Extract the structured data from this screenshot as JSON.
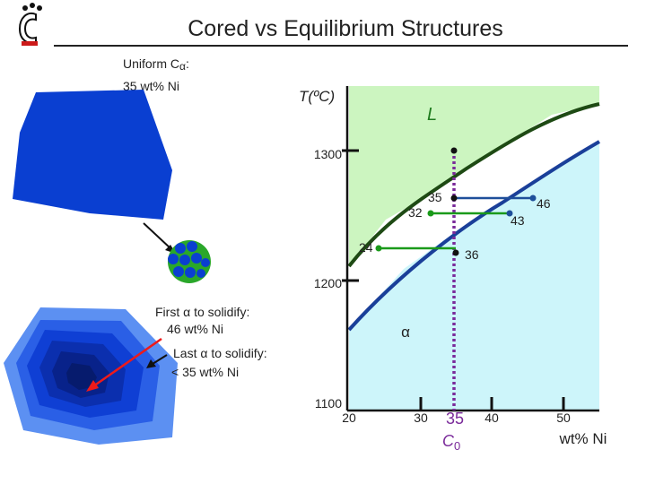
{
  "slide": {
    "title": "Cored vs Equilibrium Structures"
  },
  "left": {
    "uniform_label_line1": "Uniform C",
    "uniform_label_sub": "α",
    "uniform_label_colon": ":",
    "uniform_label_line2": "35 wt% Ni",
    "first_alpha_line1": "First α to solidify:",
    "first_alpha_line2": "46 wt% Ni",
    "last_alpha_line1": "Last α to solidify:",
    "last_alpha_line2": "< 35 wt% Ni"
  },
  "chart_data": {
    "type": "diagram",
    "ylabel": "T(ºC)",
    "xlabel": "wt% Ni",
    "xlim": [
      20,
      50
    ],
    "ylim": [
      1100,
      1350
    ],
    "y_ticks": [
      "1300",
      "1200",
      "1100"
    ],
    "x_ticks": [
      "20",
      "30",
      "35",
      "40",
      "50"
    ],
    "composition_marker": {
      "value": "35",
      "label": "C",
      "label_sub": "0"
    },
    "regions": {
      "liquid": "L",
      "solid": "α"
    },
    "tie_lines": [
      {
        "left": "35",
        "right": "46"
      },
      {
        "left": "32",
        "right": "43"
      },
      {
        "left": "24",
        "right": "36"
      }
    ],
    "colors": {
      "liquid_region": "#ccf5c0",
      "solid_region": "#cdf5fa",
      "liquidus": "#1e4a14",
      "solidus": "#1a3f99",
      "composition_line": "#7a2a9a",
      "tie_line_green": "#1a9a1a",
      "tie_line_blue": "#1e4f9a"
    }
  }
}
